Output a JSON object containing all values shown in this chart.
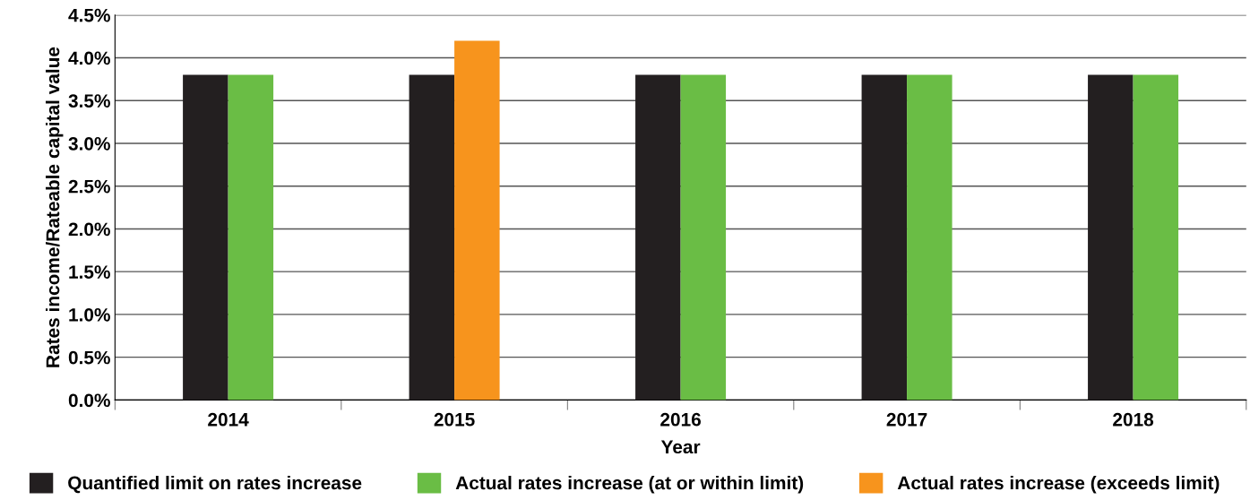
{
  "chart_data": {
    "type": "bar",
    "xlabel": "Year",
    "ylabel": "Rates income/Rateable capital value",
    "categories": [
      "2014",
      "2015",
      "2016",
      "2017",
      "2018"
    ],
    "series": [
      {
        "name": "Quantified limit on rates increase",
        "color": "#231f20",
        "values": [
          3.8,
          3.8,
          3.8,
          3.8,
          3.8
        ]
      },
      {
        "name": "Actual rates increase (at or within limit)",
        "color": "#6abd45",
        "values": [
          3.8,
          null,
          3.8,
          3.8,
          3.8
        ]
      },
      {
        "name": "Actual rates increase (exceeds limit)",
        "color": "#f7941d",
        "values": [
          null,
          4.2,
          null,
          null,
          null
        ]
      }
    ],
    "ylim": [
      0,
      4.5
    ],
    "yticks": [
      {
        "value": 0,
        "label": "0.0%"
      },
      {
        "value": 0.5,
        "label": "0.5%"
      },
      {
        "value": 1,
        "label": "1.0%"
      },
      {
        "value": 1.5,
        "label": "1.5%"
      },
      {
        "value": 2,
        "label": "2.0%"
      },
      {
        "value": 2.5,
        "label": "2.5%"
      },
      {
        "value": 3,
        "label": "3.0%"
      },
      {
        "value": 3.5,
        "label": "3.5%"
      },
      {
        "value": 4,
        "label": "4.0%"
      },
      {
        "value": 4.5,
        "label": "4.5%"
      }
    ],
    "grid": "y",
    "legend": "bottom"
  }
}
